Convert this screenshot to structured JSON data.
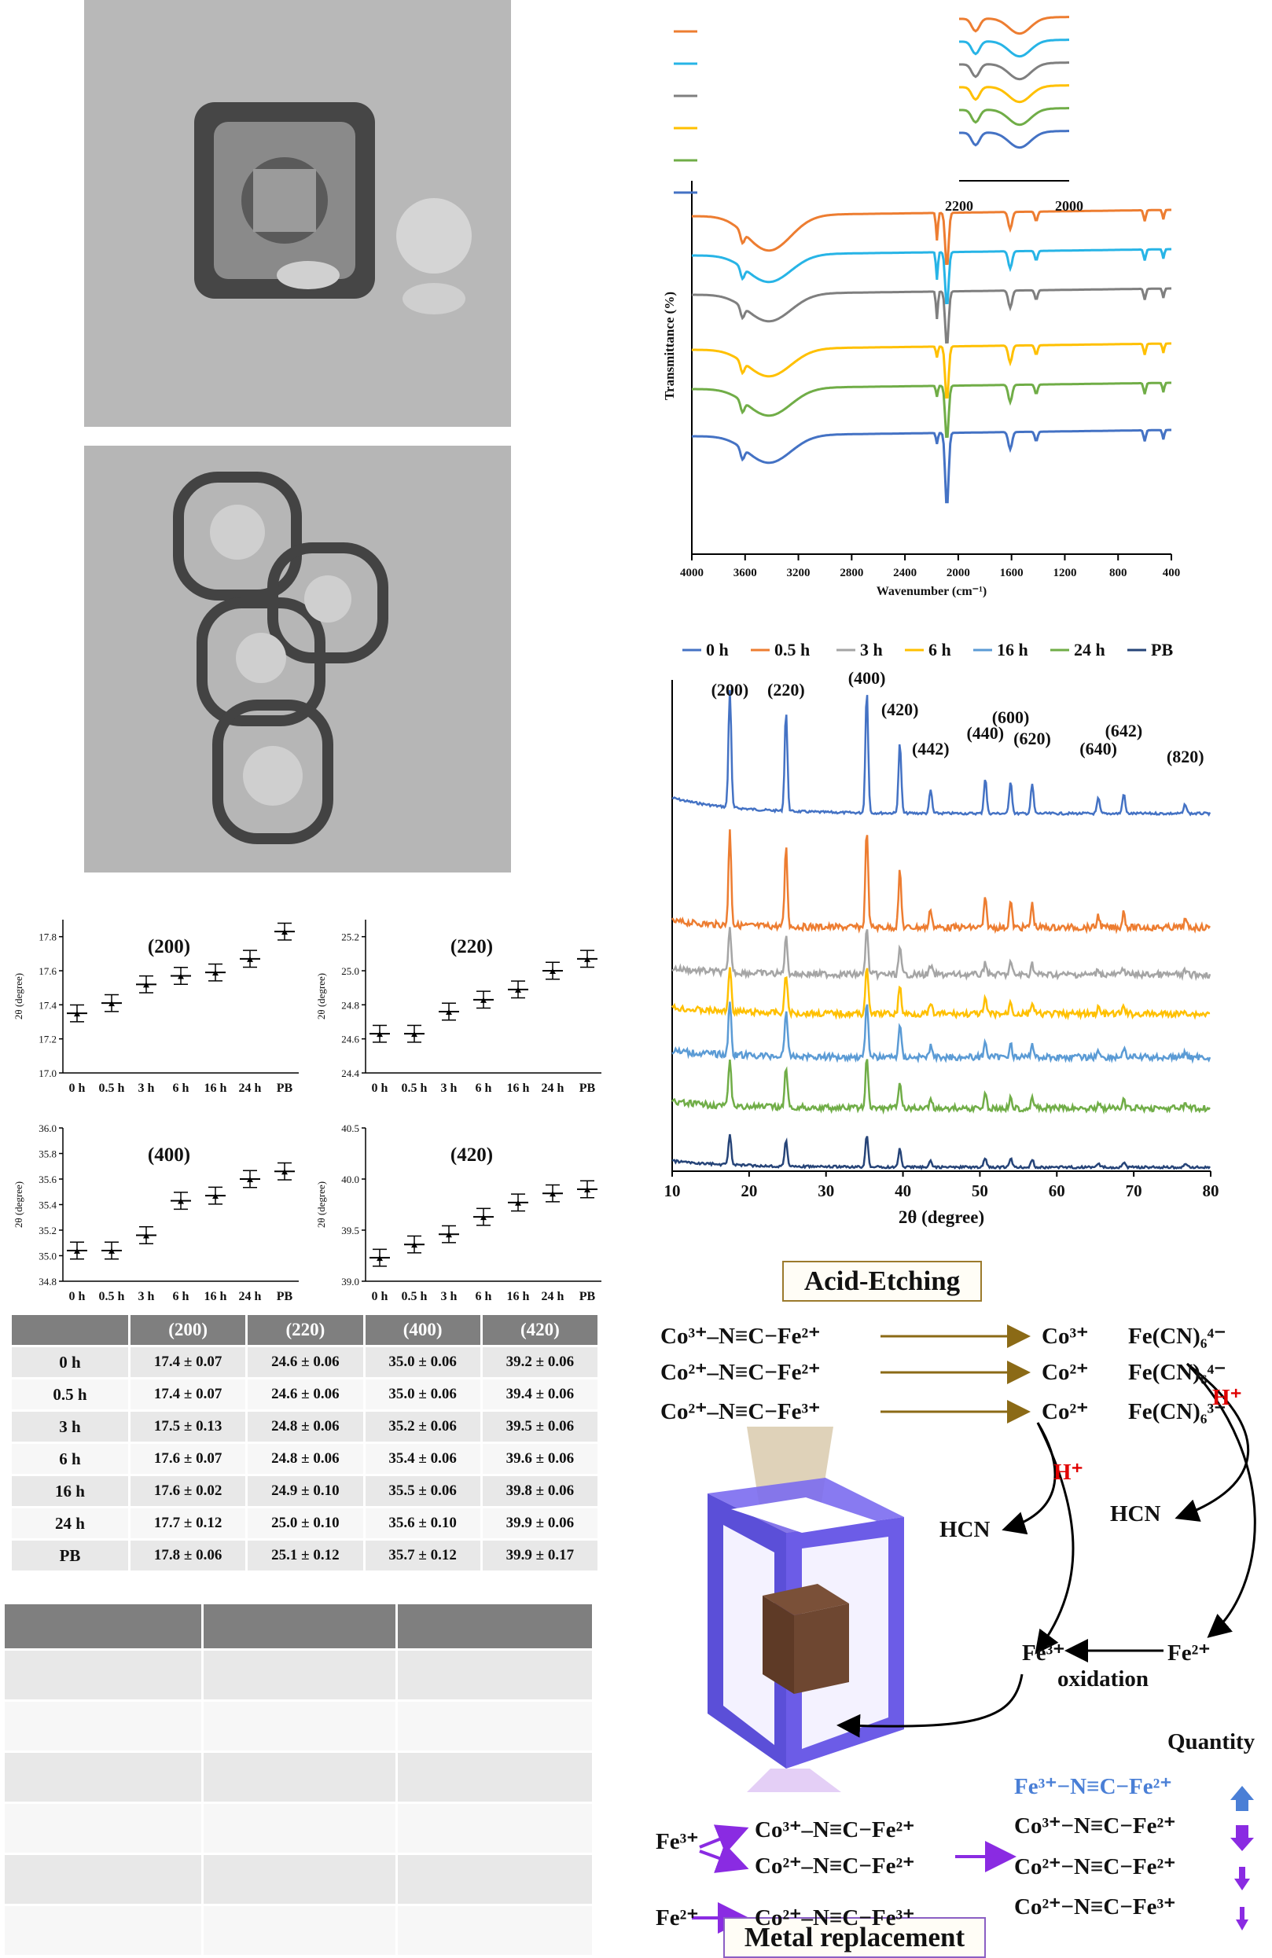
{
  "ftir": {
    "series_colors": [
      "#ed7d31",
      "#27b4e6",
      "#7f7f7f",
      "#ffc000",
      "#70ad47",
      "#4472c4"
    ],
    "xlabel": "Wavenumber (cm⁻¹)",
    "ylabel": "Transmittance (%)",
    "x_ticks": [
      "4000",
      "3600",
      "3200",
      "2800",
      "2400",
      "2000",
      "1600",
      "1200",
      "800",
      "400"
    ],
    "inset_ticks": [
      "2200",
      "2000"
    ]
  },
  "xrd": {
    "legend": [
      {
        "name": "0 h",
        "color": "#4472c4"
      },
      {
        "name": "0.5 h",
        "color": "#ed7d31"
      },
      {
        "name": "3 h",
        "color": "#a5a5a5"
      },
      {
        "name": "6 h",
        "color": "#ffc000"
      },
      {
        "name": "16 h",
        "color": "#5b9bd5"
      },
      {
        "name": "24 h",
        "color": "#70ad47"
      },
      {
        "name": "PB",
        "color": "#264478"
      }
    ],
    "xlabel": "2θ (degree)",
    "x_ticks": [
      "10",
      "20",
      "30",
      "40",
      "50",
      "60",
      "70",
      "80"
    ],
    "peak_labels": [
      "(200)",
      "(220)",
      "(400)",
      "(420)",
      "(442)",
      "(440)",
      "(600)",
      "(620)",
      "(640)",
      "(642)",
      "(820)"
    ]
  },
  "chart_data": [
    {
      "type": "scatter",
      "title": "(200)",
      "ylabel": "2θ (degree)",
      "categories": [
        "0 h",
        "0.5 h",
        "3 h",
        "6 h",
        "16 h",
        "24 h",
        "PB"
      ],
      "values": [
        17.35,
        17.41,
        17.52,
        17.57,
        17.59,
        17.67,
        17.83
      ],
      "ylim": [
        17.0,
        17.9
      ],
      "y_ticks": [
        "17.0",
        "17.2",
        "17.4",
        "17.6",
        "17.8"
      ]
    },
    {
      "type": "scatter",
      "title": "(220)",
      "ylabel": "2θ (degree)",
      "categories": [
        "0 h",
        "0.5 h",
        "3 h",
        "6 h",
        "16 h",
        "24 h",
        "PB"
      ],
      "values": [
        24.63,
        24.63,
        24.76,
        24.83,
        24.89,
        25.0,
        25.07
      ],
      "ylim": [
        24.4,
        25.3
      ],
      "y_ticks": [
        "24.4",
        "24.6",
        "24.8",
        "25.0",
        "25.2"
      ]
    },
    {
      "type": "scatter",
      "title": "(400)",
      "ylabel": "2θ (degree)",
      "categories": [
        "0 h",
        "0.5 h",
        "3 h",
        "6 h",
        "16 h",
        "24 h",
        "PB"
      ],
      "values": [
        35.04,
        35.04,
        35.16,
        35.43,
        35.47,
        35.6,
        35.66
      ],
      "ylim": [
        34.8,
        36.0
      ],
      "y_ticks": [
        "34.8",
        "35.0",
        "35.2",
        "35.4",
        "35.6",
        "35.8",
        "36.0"
      ]
    },
    {
      "type": "scatter",
      "title": "(420)",
      "ylabel": "2θ (degree)",
      "categories": [
        "0 h",
        "0.5 h",
        "3 h",
        "6 h",
        "16 h",
        "24 h",
        "PB"
      ],
      "values": [
        39.23,
        39.36,
        39.46,
        39.63,
        39.77,
        39.86,
        39.9
      ],
      "ylim": [
        39.0,
        40.5
      ],
      "y_ticks": [
        "39.0",
        "39.5",
        "40.0",
        "40.5"
      ]
    }
  ],
  "table1": {
    "headers": [
      "",
      "(200)",
      "(220)",
      "(400)",
      "(420)"
    ],
    "rows": [
      [
        "0 h",
        "17.4 ± 0.07",
        "24.6 ± 0.06",
        "35.0 ± 0.06",
        "39.2 ± 0.06"
      ],
      [
        "0.5 h",
        "17.4 ± 0.07",
        "24.6 ± 0.06",
        "35.0 ± 0.06",
        "39.4 ± 0.06"
      ],
      [
        "3 h",
        "17.5 ± 0.13",
        "24.8 ± 0.06",
        "35.2 ± 0.06",
        "39.5 ± 0.06"
      ],
      [
        "6 h",
        "17.6 ± 0.07",
        "24.8 ± 0.06",
        "35.4 ± 0.06",
        "39.6 ± 0.06"
      ],
      [
        "16 h",
        "17.6 ± 0.02",
        "24.9 ± 0.10",
        "35.5 ± 0.06",
        "39.8 ± 0.06"
      ],
      [
        "24 h",
        "17.7 ± 0.12",
        "25.0 ± 0.10",
        "35.6 ± 0.10",
        "39.9 ± 0.06"
      ],
      [
        "PB",
        "17.8 ± 0.06",
        "25.1 ± 0.12",
        "35.7 ± 0.12",
        "39.9 ± 0.17"
      ]
    ]
  },
  "scheme": {
    "acid_etching": "Acid-Etching",
    "metal_replacement": "Metal replacement",
    "oxidation": "oxidation",
    "quantity": "Quantity",
    "h_plus": "H⁺",
    "hcn": "HCN",
    "fe3": "Fe³⁺",
    "fe2": "Fe²⁺",
    "co3": "Co³⁺",
    "co2": "Co²⁺",
    "fecn4": "Fe(CN)₆⁴⁻",
    "fecn3": "Fe(CN)₆³⁻",
    "left_species": [
      "Co³⁺–N≡C−Fe²⁺",
      "Co²⁺–N≡C−Fe²⁺",
      "Co²⁺–N≡C−Fe³⁺"
    ],
    "quantity_items": [
      "Fe³⁺−N≡C−Fe²⁺",
      "Co³⁺−N≡C−Fe²⁺",
      "Co²⁺−N≡C−Fe²⁺",
      "Co²⁺−N≡C−Fe³⁺"
    ],
    "bottom_species": [
      "Co³⁺–N≡C−Fe²⁺",
      "Co²⁺–N≡C−Fe²⁺",
      "Co²⁺–N≡C−Fe³⁺"
    ]
  }
}
